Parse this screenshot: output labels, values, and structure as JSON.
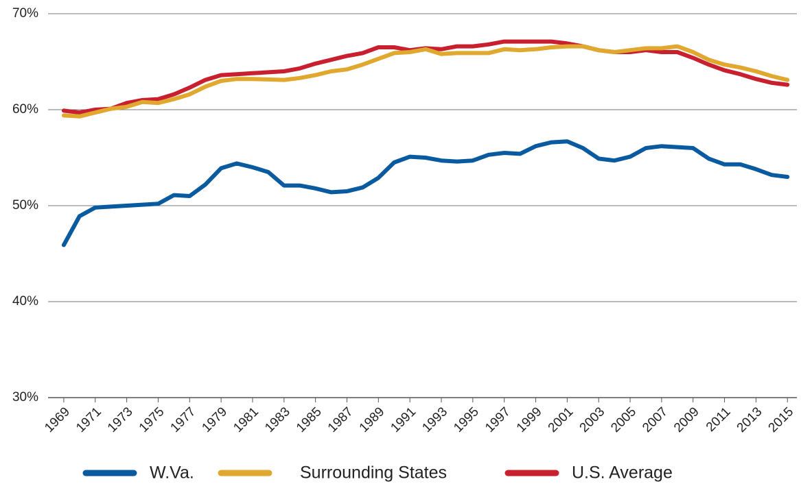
{
  "chart_data": {
    "type": "line",
    "x": [
      1969,
      1970,
      1971,
      1972,
      1973,
      1974,
      1975,
      1976,
      1977,
      1978,
      1979,
      1980,
      1981,
      1982,
      1983,
      1984,
      1985,
      1986,
      1987,
      1988,
      1989,
      1990,
      1991,
      1992,
      1993,
      1994,
      1995,
      1996,
      1997,
      1998,
      1999,
      2000,
      2001,
      2002,
      2003,
      2004,
      2005,
      2006,
      2007,
      2008,
      2009,
      2010,
      2011,
      2012,
      2013,
      2014,
      2015
    ],
    "series": [
      {
        "name": "W.Va.",
        "color": "#0a5aa0",
        "values": [
          45.9,
          48.9,
          49.8,
          49.9,
          50.0,
          50.1,
          50.2,
          51.1,
          51.0,
          52.2,
          53.9,
          54.4,
          54.0,
          53.5,
          52.1,
          52.1,
          51.8,
          51.4,
          51.5,
          51.9,
          52.9,
          54.5,
          55.1,
          55.0,
          54.7,
          54.6,
          54.7,
          55.3,
          55.5,
          55.4,
          56.2,
          56.6,
          56.7,
          56.0,
          54.9,
          54.7,
          55.1,
          56.0,
          56.2,
          56.1,
          56.0,
          54.9,
          54.3,
          54.3,
          53.8,
          53.2,
          53.0
        ]
      },
      {
        "name": "Surrounding States",
        "color": "#e0a82e",
        "values": [
          59.4,
          59.3,
          59.7,
          60.1,
          60.3,
          60.8,
          60.7,
          61.1,
          61.6,
          62.4,
          63.0,
          63.2,
          63.2,
          63.15,
          63.1,
          63.3,
          63.6,
          64.0,
          64.2,
          64.7,
          65.3,
          65.9,
          66.0,
          66.3,
          65.8,
          65.9,
          65.9,
          65.9,
          66.3,
          66.2,
          66.3,
          66.5,
          66.6,
          66.6,
          66.2,
          66.0,
          66.2,
          66.4,
          66.4,
          66.6,
          66.0,
          65.2,
          64.7,
          64.4,
          64.0,
          63.5,
          63.1
        ]
      },
      {
        "name": "U.S. Average",
        "color": "#c8202f",
        "values": [
          59.9,
          59.7,
          60.0,
          60.1,
          60.7,
          61.0,
          61.1,
          61.6,
          62.3,
          63.1,
          63.6,
          63.7,
          63.8,
          63.9,
          64.0,
          64.3,
          64.8,
          65.2,
          65.6,
          65.9,
          66.5,
          66.5,
          66.2,
          66.4,
          66.3,
          66.6,
          66.6,
          66.8,
          67.1,
          67.1,
          67.1,
          67.1,
          66.9,
          66.6,
          66.2,
          66.0,
          66.0,
          66.2,
          66.0,
          66.0,
          65.4,
          64.7,
          64.1,
          63.7,
          63.2,
          62.8,
          62.6
        ]
      }
    ],
    "xlim": [
      1968,
      2015.6
    ],
    "xticks": [
      1969,
      1971,
      1973,
      1975,
      1977,
      1979,
      1981,
      1983,
      1985,
      1987,
      1989,
      1991,
      1993,
      1995,
      1997,
      1999,
      2001,
      2003,
      2005,
      2007,
      2009,
      2011,
      2013,
      2015
    ],
    "ylim": [
      30,
      70
    ],
    "yticks": [
      {
        "value": 30,
        "label": "30%"
      },
      {
        "value": 40,
        "label": "40%"
      },
      {
        "value": 50,
        "label": "50%"
      },
      {
        "value": 60,
        "label": "60%"
      },
      {
        "value": 70,
        "label": "70%"
      }
    ],
    "grid": true,
    "legend": "bottom"
  }
}
